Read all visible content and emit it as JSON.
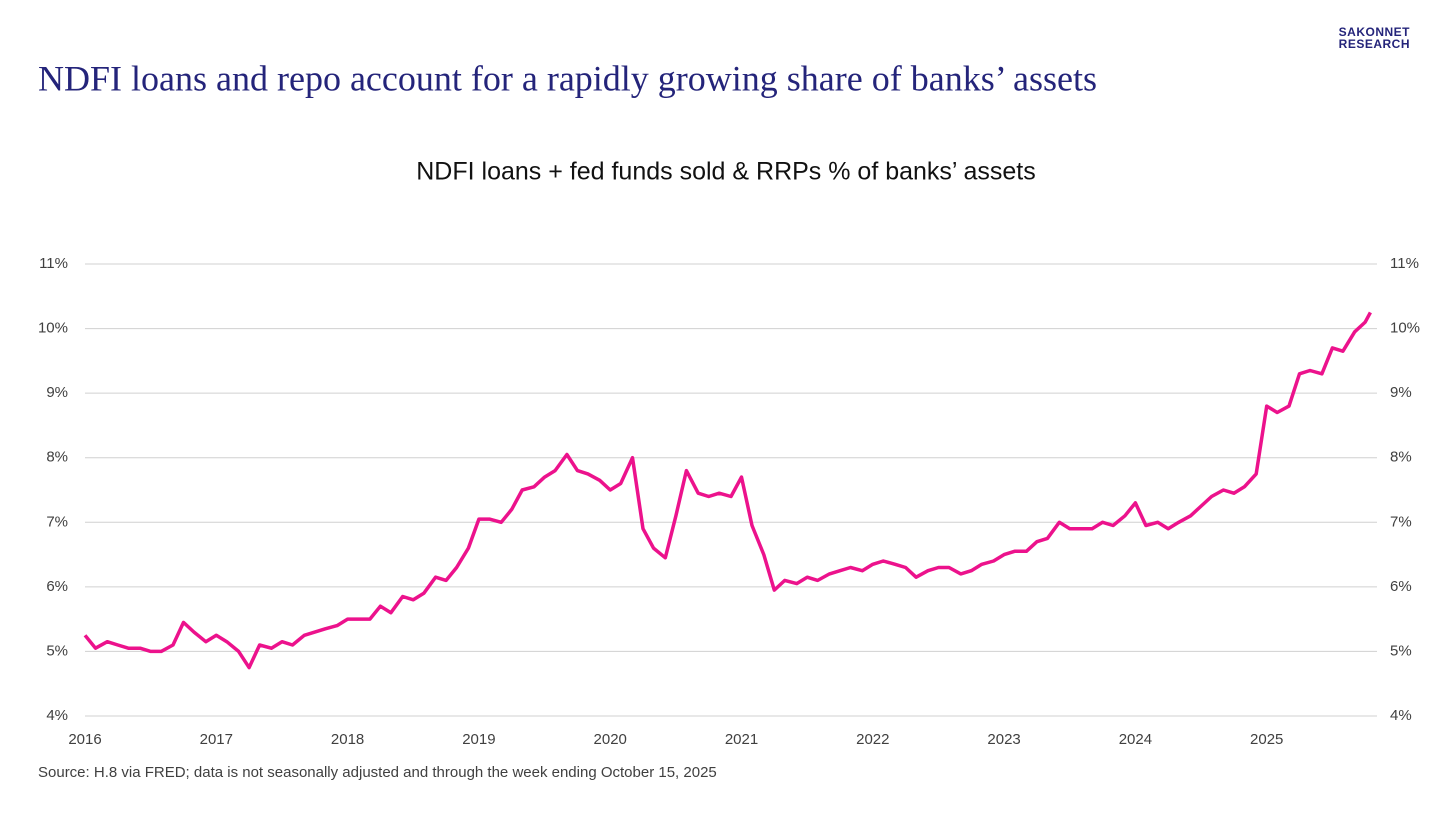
{
  "brand": {
    "line1": "SAKONNET",
    "line2": "RESEARCH"
  },
  "header": {
    "title": "NDFI loans and repo account for a rapidly growing share of banks’ assets"
  },
  "chart_data": {
    "type": "line",
    "title": "NDFI loans + fed funds sold & RRPs % of banks’ assets",
    "source": "Source: H.8 via FRED; data is not seasonally adjusted and through the week ending October 15, 2025",
    "x": [
      2016.0,
      2016.08,
      2016.17,
      2016.25,
      2016.33,
      2016.42,
      2016.5,
      2016.58,
      2016.67,
      2016.75,
      2016.83,
      2016.92,
      2017.0,
      2017.08,
      2017.17,
      2017.25,
      2017.33,
      2017.42,
      2017.5,
      2017.58,
      2017.67,
      2017.75,
      2017.83,
      2017.92,
      2018.0,
      2018.08,
      2018.17,
      2018.25,
      2018.33,
      2018.42,
      2018.5,
      2018.58,
      2018.67,
      2018.75,
      2018.83,
      2018.92,
      2019.0,
      2019.08,
      2019.17,
      2019.25,
      2019.33,
      2019.42,
      2019.5,
      2019.58,
      2019.67,
      2019.75,
      2019.83,
      2019.92,
      2020.0,
      2020.08,
      2020.17,
      2020.25,
      2020.33,
      2020.42,
      2020.5,
      2020.58,
      2020.67,
      2020.75,
      2020.83,
      2020.92,
      2021.0,
      2021.08,
      2021.17,
      2021.25,
      2021.33,
      2021.42,
      2021.5,
      2021.58,
      2021.67,
      2021.75,
      2021.83,
      2021.92,
      2022.0,
      2022.08,
      2022.17,
      2022.25,
      2022.33,
      2022.42,
      2022.5,
      2022.58,
      2022.67,
      2022.75,
      2022.83,
      2022.92,
      2023.0,
      2023.08,
      2023.17,
      2023.25,
      2023.33,
      2023.42,
      2023.5,
      2023.58,
      2023.67,
      2023.75,
      2023.83,
      2023.92,
      2024.0,
      2024.08,
      2024.17,
      2024.25,
      2024.33,
      2024.42,
      2024.5,
      2024.58,
      2024.67,
      2024.75,
      2024.83,
      2024.92,
      2025.0,
      2025.08,
      2025.17,
      2025.25,
      2025.33,
      2025.42,
      2025.5,
      2025.58,
      2025.67,
      2025.75,
      2025.79
    ],
    "series": [
      {
        "name": "NDFI loans + fed funds sold & RRPs % of banks’ assets",
        "color": "#ec128c",
        "values": [
          5.25,
          5.05,
          5.15,
          5.1,
          5.05,
          5.05,
          5.0,
          5.0,
          5.1,
          5.45,
          5.3,
          5.15,
          5.25,
          5.15,
          5.0,
          4.75,
          5.1,
          5.05,
          5.15,
          5.1,
          5.25,
          5.3,
          5.35,
          5.4,
          5.5,
          5.5,
          5.5,
          5.7,
          5.6,
          5.85,
          5.8,
          5.9,
          6.15,
          6.1,
          6.3,
          6.6,
          7.05,
          7.05,
          7.0,
          7.2,
          7.5,
          7.55,
          7.7,
          7.8,
          8.05,
          7.8,
          7.75,
          7.65,
          7.5,
          7.6,
          8.0,
          6.9,
          6.6,
          6.45,
          7.1,
          7.8,
          7.45,
          7.4,
          7.45,
          7.4,
          7.7,
          6.95,
          6.5,
          5.95,
          6.1,
          6.05,
          6.15,
          6.1,
          6.2,
          6.25,
          6.3,
          6.25,
          6.35,
          6.4,
          6.35,
          6.3,
          6.15,
          6.25,
          6.3,
          6.3,
          6.2,
          6.25,
          6.35,
          6.4,
          6.5,
          6.55,
          6.55,
          6.7,
          6.75,
          7.0,
          6.9,
          6.9,
          6.9,
          7.0,
          6.95,
          7.1,
          7.3,
          6.95,
          7.0,
          6.9,
          7.0,
          7.1,
          7.25,
          7.4,
          7.5,
          7.45,
          7.55,
          7.75,
          8.8,
          8.7,
          8.8,
          9.3,
          9.35,
          9.3,
          9.7,
          9.65,
          9.95,
          10.1,
          10.25
        ]
      }
    ],
    "xlim": [
      2016,
      2025.84
    ],
    "xticks": [
      2016,
      2017,
      2018,
      2019,
      2020,
      2021,
      2022,
      2023,
      2024,
      2025
    ],
    "ylim": [
      4,
      11
    ],
    "yticks": [
      {
        "value": 4,
        "label": "4%"
      },
      {
        "value": 5,
        "label": "5%"
      },
      {
        "value": 6,
        "label": "6%"
      },
      {
        "value": 7,
        "label": "7%"
      },
      {
        "value": 8,
        "label": "8%"
      },
      {
        "value": 9,
        "label": "9%"
      },
      {
        "value": 10,
        "label": "10%"
      },
      {
        "value": 11,
        "label": "11%"
      }
    ],
    "y2lim": [
      4,
      11
    ],
    "y2ticks": [
      {
        "value": 4,
        "label": "4%"
      },
      {
        "value": 5,
        "label": "5%"
      },
      {
        "value": 6,
        "label": "6%"
      },
      {
        "value": 7,
        "label": "7%"
      },
      {
        "value": 8,
        "label": "8%"
      },
      {
        "value": 9,
        "label": "9%"
      },
      {
        "value": 10,
        "label": "10%"
      },
      {
        "value": 11,
        "label": "11%"
      }
    ],
    "grid": true
  }
}
